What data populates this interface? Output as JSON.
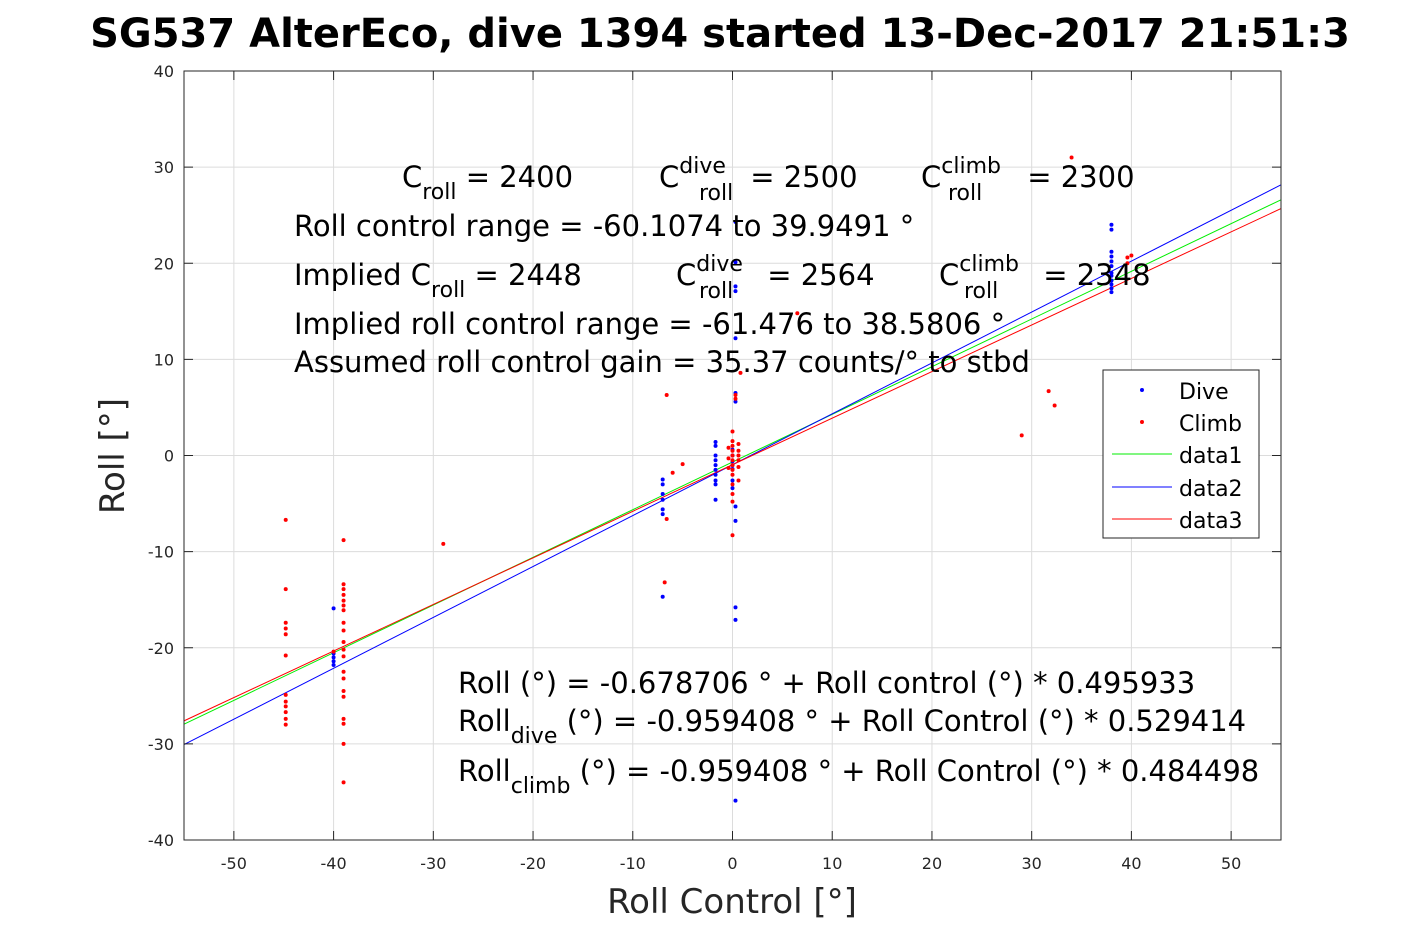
{
  "chart_data": {
    "type": "scatter",
    "title": "SG537 AlterEco, dive 1394 started 13-Dec-2017 21:51:3",
    "xlabel": "Roll Control [°]",
    "ylabel": "Roll [°]",
    "xlim": [
      -55,
      55
    ],
    "ylim": [
      -40,
      40
    ],
    "xticks": [
      -50,
      -40,
      -30,
      -20,
      -10,
      0,
      10,
      20,
      30,
      40,
      50
    ],
    "yticks": [
      -40,
      -30,
      -20,
      -10,
      0,
      10,
      20,
      30,
      40
    ],
    "grid": true,
    "legend_position": "right",
    "annotations": {
      "c_roll": {
        "base": "C",
        "sub": "roll",
        "value": " = 2400"
      },
      "c_roll_dive": {
        "base": "C",
        "sup": "dive",
        "sub": "roll",
        "value": " = 2500"
      },
      "c_roll_climb": {
        "base": "C",
        "sup": "climb",
        "sub": "roll",
        "value": " = 2300"
      },
      "range": "Roll control range = -60.1074 to 39.9491 °",
      "implied_c_roll": {
        "prefix": "Implied C",
        "sub": "roll",
        "value": " = 2448"
      },
      "implied_c_dive": {
        "base": "C",
        "sup": "dive",
        "sub": "roll",
        "value": " = 2564"
      },
      "implied_c_climb": {
        "base": "C",
        "sup": "climb",
        "sub": "roll",
        "value": " = 2348"
      },
      "implied_range": "Implied roll control range = -61.476 to 38.5806 °",
      "gain": "Assumed roll control gain = 35.37 counts/° to stbd",
      "fit_all": "Roll (°) = -0.678706 ° + Roll control (°) * 0.495933",
      "fit_dive": {
        "base": "Roll",
        "sub": "dive",
        "rest": " (°) = -0.959408 ° + Roll Control (°) * 0.529414"
      },
      "fit_climb": {
        "base": "Roll",
        "sub": "climb",
        "rest": " (°) = -0.959408 ° + Roll Control (°) * 0.484498"
      }
    },
    "series": [
      {
        "name": "Dive",
        "kind": "points",
        "color": "#0000ff",
        "points": [
          [
            -40,
            -15.9
          ],
          [
            -40,
            -20.6
          ],
          [
            -40,
            -21.0
          ],
          [
            -40,
            -21.4
          ],
          [
            -40,
            -21.8
          ],
          [
            -7,
            -2.5
          ],
          [
            -7,
            -3.0
          ],
          [
            -7,
            -4.0
          ],
          [
            -7,
            -4.6
          ],
          [
            -7,
            -5.6
          ],
          [
            -7,
            -6.1
          ],
          [
            -7,
            -14.7
          ],
          [
            -1.7,
            1.4
          ],
          [
            -1.7,
            1.0
          ],
          [
            -1.7,
            0.0
          ],
          [
            -1.7,
            -0.5
          ],
          [
            -1.7,
            -1.0
          ],
          [
            -1.7,
            -1.5
          ],
          [
            -1.7,
            -2.0
          ],
          [
            -1.7,
            -2.6
          ],
          [
            -1.7,
            -3.0
          ],
          [
            -1.7,
            -4.6
          ],
          [
            0,
            0.6
          ],
          [
            0,
            0.0
          ],
          [
            0,
            -0.6
          ],
          [
            0,
            -1.0
          ],
          [
            0,
            -1.4
          ],
          [
            0,
            -2.6
          ],
          [
            0,
            -3.4
          ],
          [
            0.3,
            24.3
          ],
          [
            0.3,
            20.1
          ],
          [
            0.3,
            17.6
          ],
          [
            0.3,
            17.1
          ],
          [
            0.3,
            12.2
          ],
          [
            0.3,
            6.5
          ],
          [
            0.3,
            5.6
          ],
          [
            0.3,
            -5.3
          ],
          [
            0.3,
            -6.8
          ],
          [
            0.3,
            -15.8
          ],
          [
            0.3,
            -17.1
          ],
          [
            0.3,
            -35.9
          ],
          [
            38,
            24.0
          ],
          [
            38,
            23.5
          ],
          [
            38,
            21.2
          ],
          [
            38,
            20.7
          ],
          [
            38,
            20.2
          ],
          [
            38,
            19.7
          ],
          [
            38,
            19.0
          ],
          [
            38,
            18.7
          ],
          [
            38,
            18.2
          ],
          [
            38,
            17.8
          ],
          [
            38,
            17.4
          ],
          [
            38,
            17.0
          ]
        ]
      },
      {
        "name": "Climb",
        "kind": "points",
        "color": "#ff0000",
        "points": [
          [
            -44.8,
            -6.7
          ],
          [
            -44.8,
            -13.9
          ],
          [
            -44.8,
            -17.4
          ],
          [
            -44.8,
            -18.0
          ],
          [
            -44.8,
            -18.6
          ],
          [
            -44.8,
            -20.8
          ],
          [
            -44.8,
            -24.9
          ],
          [
            -44.8,
            -25.6
          ],
          [
            -44.8,
            -26.1
          ],
          [
            -44.8,
            -26.7
          ],
          [
            -44.8,
            -27.4
          ],
          [
            -44.8,
            -28.0
          ],
          [
            -39,
            -8.8
          ],
          [
            -39,
            -13.4
          ],
          [
            -39,
            -13.9
          ],
          [
            -39,
            -14.5
          ],
          [
            -39,
            -15.1
          ],
          [
            -39,
            -15.6
          ],
          [
            -39,
            -16.1
          ],
          [
            -39,
            -17.4
          ],
          [
            -39,
            -18.2
          ],
          [
            -39,
            -19.4
          ],
          [
            -39,
            -20.2
          ],
          [
            -39,
            -20.9
          ],
          [
            -39,
            -22.5
          ],
          [
            -39,
            -23.2
          ],
          [
            -39,
            -24.5
          ],
          [
            -39,
            -25.1
          ],
          [
            -39,
            -27.4
          ],
          [
            -39,
            -27.9
          ],
          [
            -39,
            -30.0
          ],
          [
            -39,
            -34.0
          ],
          [
            -40,
            -20.4
          ],
          [
            -29,
            -9.2
          ],
          [
            -6.6,
            6.3
          ],
          [
            -6.6,
            -6.6
          ],
          [
            -6.8,
            -13.2
          ],
          [
            -5.0,
            -0.9
          ],
          [
            -6.0,
            -1.8
          ],
          [
            0,
            2.5
          ],
          [
            0,
            1.5
          ],
          [
            0,
            1.0
          ],
          [
            0,
            0.5
          ],
          [
            0,
            0.0
          ],
          [
            0,
            -0.5
          ],
          [
            0,
            -1.0
          ],
          [
            0,
            -1.5
          ],
          [
            0,
            -2.0
          ],
          [
            0,
            -3.0
          ],
          [
            0,
            -4.0
          ],
          [
            0,
            -4.8
          ],
          [
            0,
            -8.3
          ],
          [
            0.3,
            6.3
          ],
          [
            0.3,
            5.9
          ],
          [
            0.6,
            1.2
          ],
          [
            0.6,
            0.5
          ],
          [
            0.6,
            0.0
          ],
          [
            0.6,
            -0.5
          ],
          [
            0.6,
            -1.2
          ],
          [
            0.6,
            -2.6
          ],
          [
            0.8,
            8.6
          ],
          [
            -0.4,
            0.8
          ],
          [
            -0.4,
            -0.3
          ],
          [
            -0.4,
            -1.3
          ],
          [
            6.5,
            14.8
          ],
          [
            29,
            2.1
          ],
          [
            31.7,
            6.7
          ],
          [
            32.3,
            5.2
          ],
          [
            34,
            31.0
          ],
          [
            39.6,
            20.6
          ],
          [
            39.6,
            20.0
          ],
          [
            40,
            20.8
          ]
        ]
      },
      {
        "name": "data1",
        "kind": "line",
        "color": "#00ee00",
        "intercept": -0.678706,
        "slope": 0.495933
      },
      {
        "name": "data2",
        "kind": "line",
        "color": "#0000ff",
        "intercept": -0.959408,
        "slope": 0.529414
      },
      {
        "name": "data3",
        "kind": "line",
        "color": "#ff0000",
        "intercept": -0.959408,
        "slope": 0.484498
      }
    ]
  }
}
